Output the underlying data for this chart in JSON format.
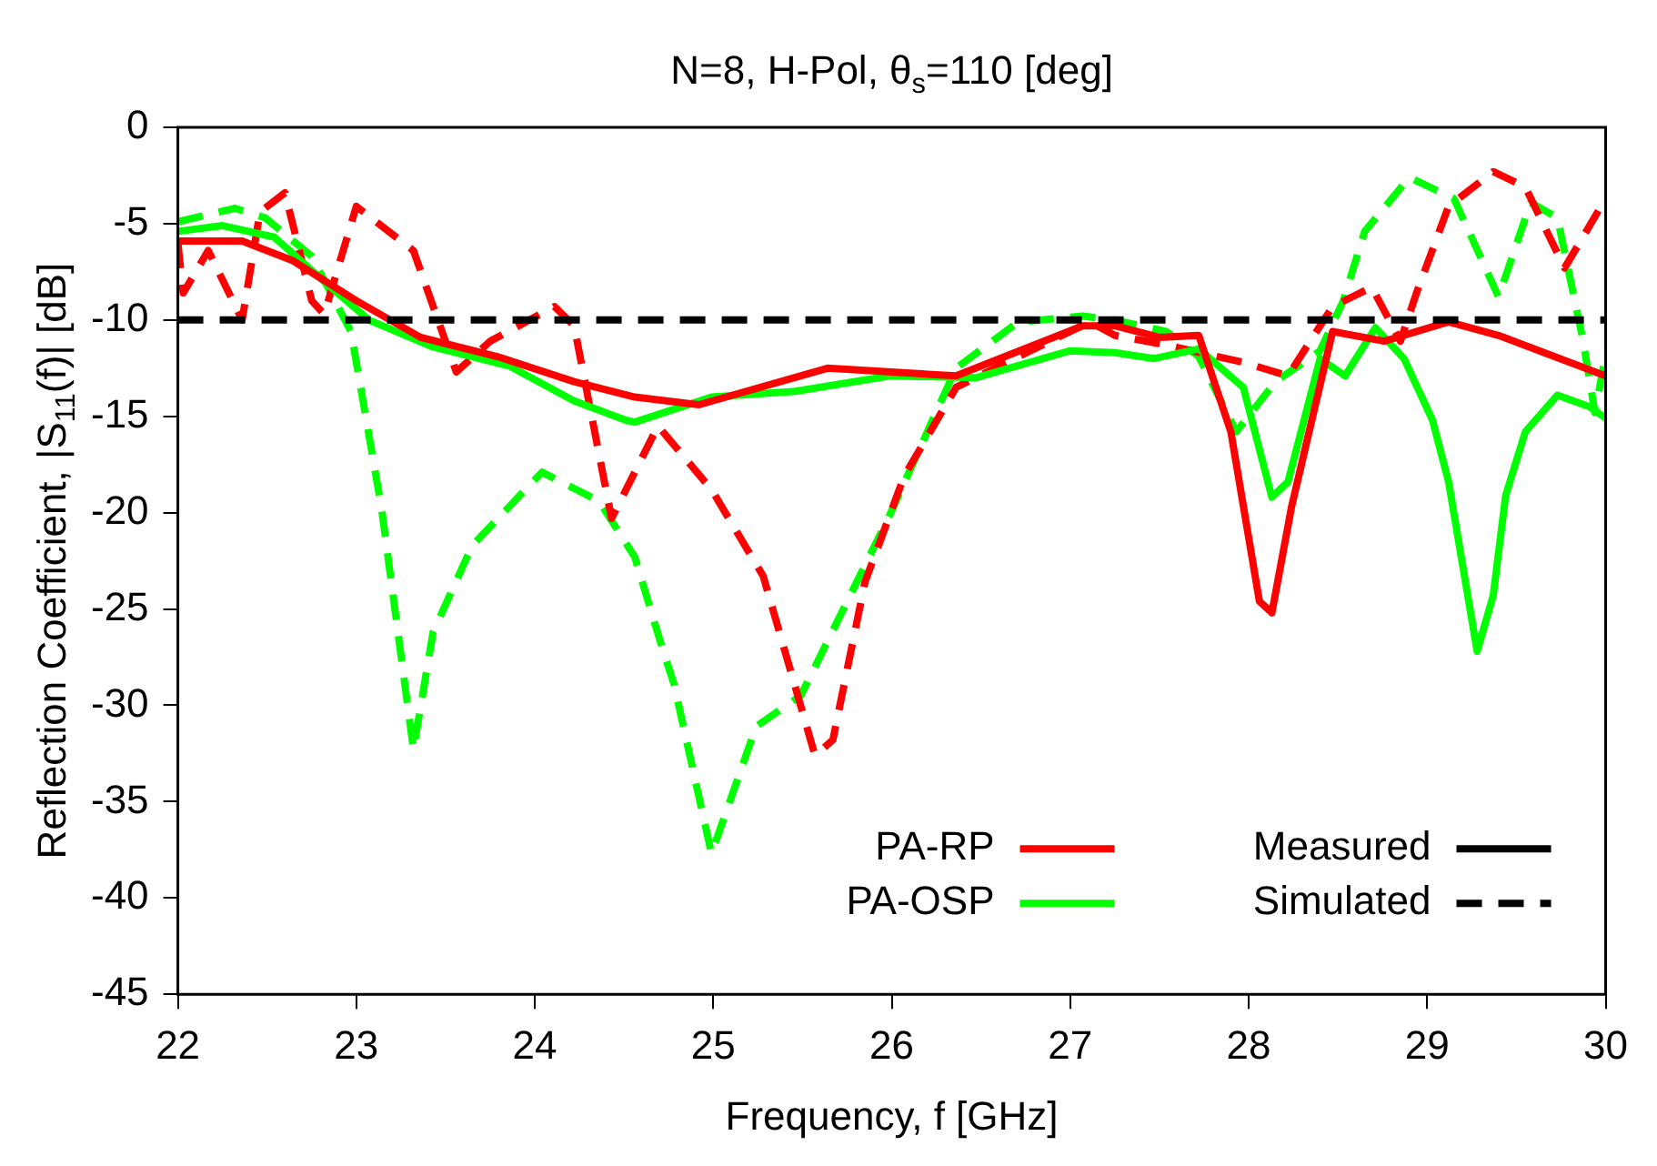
{
  "chart_data": {
    "type": "line",
    "title": "N=8, H-Pol, θ$_{s}$=110 [deg]",
    "xlabel": "Frequency, f [GHz]",
    "ylabel": "Reflection Coefficient, |S$_{11}$(f)| [dB]",
    "xlim": [
      22,
      30
    ],
    "xticks": [
      22,
      23,
      24,
      25,
      26,
      27,
      28,
      29,
      30
    ],
    "ylim": [
      -45,
      0
    ],
    "yticks": [
      -45,
      -40,
      -35,
      -30,
      -25,
      -20,
      -15,
      -10,
      -5,
      0
    ],
    "grid": false,
    "legend": "bottom right",
    "marker": "none",
    "ref_lines": [
      {
        "axis": "y",
        "value": -10,
        "color": "#000000",
        "line_style": "dashed"
      }
    ],
    "series": [
      {
        "name": "PA-RP",
        "color": "#ff0000",
        "line_style": "solid",
        "x": [
          22,
          22.36,
          22.64,
          23.0,
          23.36,
          23.79,
          24.22,
          24.56,
          24.92,
          25.64,
          26.36,
          27.07,
          27.25,
          27.5,
          27.72,
          27.9,
          28.06,
          28.13,
          28.24,
          28.47,
          28.76,
          29.12,
          29.4,
          30
        ],
        "values": [
          -5.9,
          -5.9,
          -6.9,
          -9.0,
          -10.9,
          -11.9,
          -13.2,
          -14.0,
          -14.4,
          -12.5,
          -12.9,
          -10.3,
          -10.3,
          -10.9,
          -10.8,
          -15.8,
          -24.6,
          -25.2,
          -19.7,
          -10.6,
          -11.1,
          -10.1,
          -10.8,
          -12.9
        ]
      },
      {
        "name": "PA-OSP",
        "color": "#00ff00",
        "line_style": "solid",
        "x": [
          22,
          22.25,
          22.54,
          22.82,
          23.07,
          23.43,
          23.86,
          24.22,
          24.51,
          24.56,
          24.99,
          25.46,
          25.99,
          26.47,
          27.0,
          27.25,
          27.47,
          27.72,
          27.97,
          28.13,
          28.22,
          28.4,
          28.54,
          28.71,
          28.87,
          29.03,
          29.12,
          29.28,
          29.37,
          29.44,
          29.55,
          29.73,
          29.91,
          30
        ],
        "values": [
          -5.4,
          -5.1,
          -5.7,
          -8.0,
          -10.0,
          -11.4,
          -12.4,
          -14.2,
          -15.2,
          -15.3,
          -14.0,
          -13.7,
          -12.9,
          -13.0,
          -11.6,
          -11.7,
          -12.0,
          -11.5,
          -13.5,
          -19.2,
          -18.4,
          -12.0,
          -12.9,
          -10.4,
          -12.0,
          -15.2,
          -18.4,
          -27.2,
          -24.3,
          -19.1,
          -15.8,
          -13.9,
          -14.5,
          -15.1
        ]
      },
      {
        "name": "Measured",
        "color": "#000000",
        "line_style": "solid"
      },
      {
        "name": "Simulated",
        "color": "#000000",
        "line_style": "dashed"
      },
      {
        "color": "#ff0000",
        "line_style": "dashed",
        "x": [
          22,
          22.03,
          22.17,
          22.36,
          22.46,
          22.6,
          22.75,
          22.82,
          23.0,
          23.32,
          23.56,
          23.75,
          24.11,
          24.22,
          24.43,
          24.69,
          24.99,
          25.28,
          25.57,
          25.67,
          25.85,
          26.07,
          26.36,
          26.71,
          27.11,
          27.25,
          27.54,
          27.97,
          28.22,
          28.47,
          28.69,
          28.85,
          28.94,
          29.12,
          29.37,
          29.55,
          29.77,
          30
        ],
        "values": [
          -6.0,
          -8.6,
          -6.4,
          -10.0,
          -4.4,
          -3.4,
          -9.0,
          -9.7,
          -4.1,
          -6.4,
          -12.7,
          -11.1,
          -9.3,
          -10.3,
          -20.3,
          -15.5,
          -18.8,
          -23.3,
          -32.6,
          -31.8,
          -23.6,
          -18.1,
          -13.5,
          -11.9,
          -10.1,
          -10.8,
          -11.3,
          -12.2,
          -12.9,
          -9.3,
          -8.3,
          -11.1,
          -8.6,
          -4.1,
          -2.3,
          -3.1,
          -7.3,
          -3.7
        ]
      },
      {
        "color": "#00ff00",
        "line_style": "dashed",
        "x": [
          22,
          22.32,
          22.49,
          22.75,
          22.97,
          23.14,
          23.32,
          23.43,
          23.65,
          24.04,
          24.36,
          24.56,
          24.7,
          24.78,
          24.99,
          25.24,
          25.49,
          25.99,
          26.36,
          26.71,
          27.07,
          27.25,
          27.54,
          27.72,
          27.93,
          28.15,
          28.4,
          28.53,
          28.65,
          28.9,
          29.15,
          29.4,
          29.58,
          29.73,
          29.87,
          29.94,
          30
        ],
        "values": [
          -4.9,
          -4.2,
          -4.7,
          -6.7,
          -10.6,
          -19.7,
          -32.3,
          -26.2,
          -21.7,
          -17.9,
          -19.4,
          -22.3,
          -26.6,
          -28.9,
          -37.7,
          -31.1,
          -29.5,
          -20.1,
          -12.5,
          -10.1,
          -9.8,
          -10.0,
          -10.6,
          -11.9,
          -15.8,
          -13.2,
          -11.6,
          -9.0,
          -5.4,
          -2.6,
          -3.7,
          -8.8,
          -3.9,
          -4.7,
          -10.9,
          -14.8,
          -11.8
        ]
      }
    ]
  }
}
